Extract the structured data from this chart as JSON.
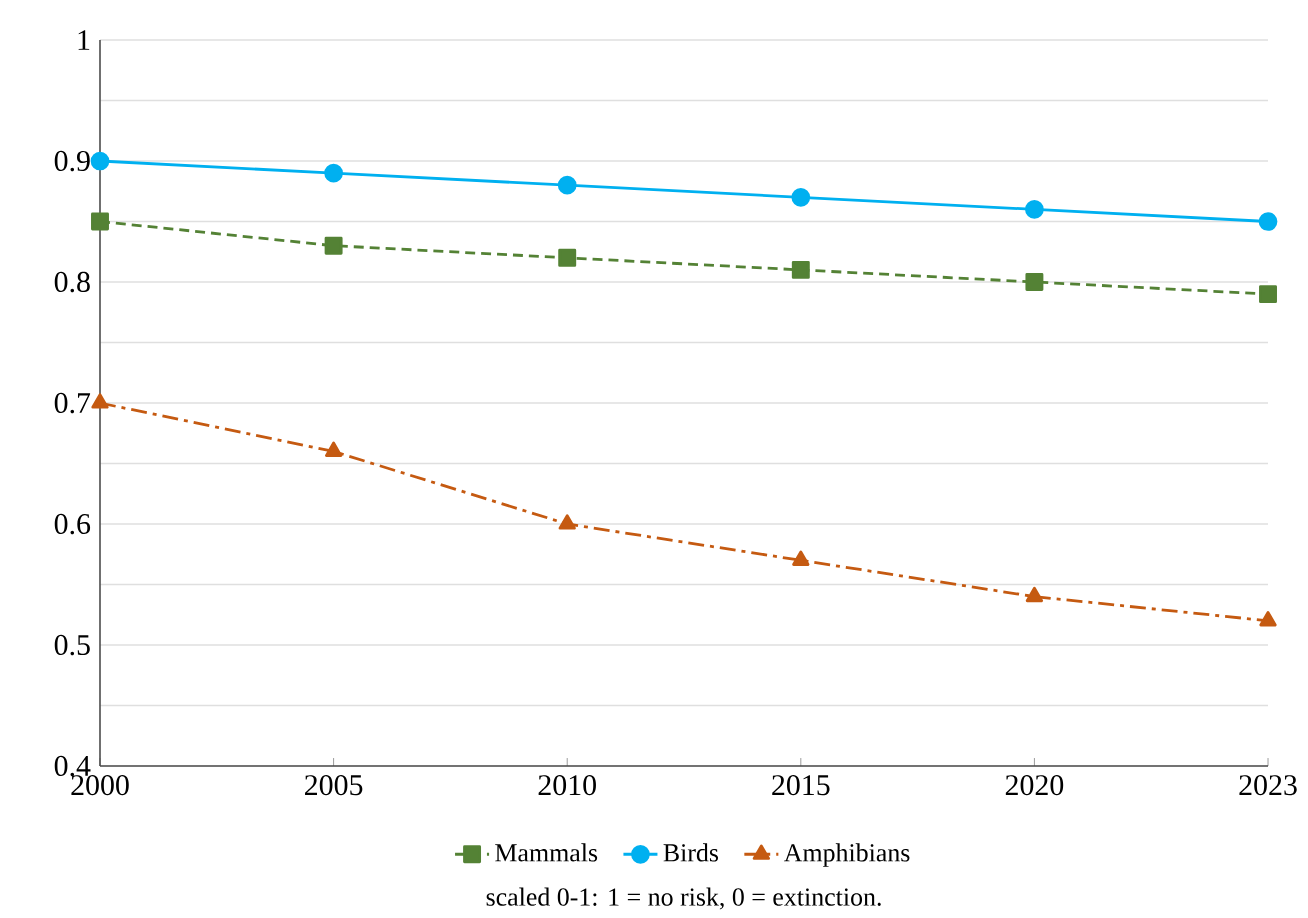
{
  "chart_data": {
    "type": "line",
    "categories": [
      "2000",
      "2005",
      "2010",
      "2015",
      "2020",
      "2023"
    ],
    "series": [
      {
        "name": "Mammals",
        "color": "#548235",
        "marker": "square",
        "line_style": "dashed",
        "values": [
          0.85,
          0.83,
          0.82,
          0.81,
          0.8,
          0.79
        ]
      },
      {
        "name": "Birds",
        "color": "#00b0f0",
        "marker": "circle",
        "line_style": "solid",
        "values": [
          0.9,
          0.89,
          0.88,
          0.87,
          0.86,
          0.85
        ]
      },
      {
        "name": "Amphibians",
        "color": "#c55a11",
        "marker": "triangle",
        "line_style": "dashdot",
        "values": [
          0.7,
          0.66,
          0.6,
          0.57,
          0.54,
          0.52
        ]
      }
    ],
    "ylim": [
      0.4,
      1
    ],
    "yticks": [
      0.4,
      {
        "value": 0.45,
        "label": null
      },
      0.5,
      {
        "value": 0.55,
        "label": null
      },
      0.6,
      {
        "value": 0.65,
        "label": null
      },
      0.7,
      {
        "value": 0.75,
        "label": null
      },
      0.8,
      {
        "value": 0.85,
        "label": null
      },
      0.9,
      {
        "value": 0.95,
        "label": null
      },
      1
    ],
    "grid": "y",
    "legend": "bottom",
    "annotations": [
      "scaled 0-1: 1 = no risk, 0 = extinction."
    ]
  }
}
